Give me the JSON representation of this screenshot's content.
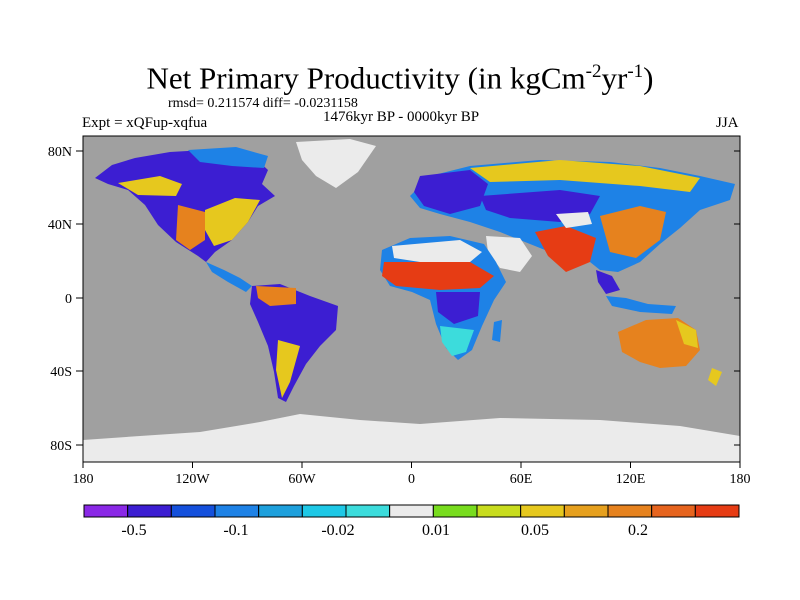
{
  "title": {
    "main": "Net Primary Productivity (in kgCm",
    "exp1": "-2",
    "mid": "yr",
    "exp2": "-1",
    "end": ")"
  },
  "stats_line": "rmsd= 0.211574 diff= -0.0231158",
  "experiment": "Expt = xQFup-xqfua",
  "period": "1476kyr BP - 0000kyr BP",
  "season": "JJA",
  "axes": {
    "lat_ticks": [
      "80N",
      "40N",
      "0",
      "40S",
      "80S"
    ],
    "lon_ticks": [
      "180",
      "120W",
      "60W",
      "0",
      "60E",
      "120E",
      "180"
    ]
  },
  "colors": {
    "ocean": "#a0a0a0",
    "ice": "#ebebeb",
    "palette": [
      "#8a28e6",
      "#3c1ed2",
      "#1450dc",
      "#1e82e6",
      "#1ea0dc",
      "#1ec8e6",
      "#3cdcdc",
      "#ebebeb",
      "#78dc1e",
      "#c8dc1e",
      "#e6c81e",
      "#e6a01e",
      "#e6821e",
      "#e6641e",
      "#e63c14"
    ]
  },
  "colorbar": {
    "labels": [
      "-0.5",
      "-0.1",
      "-0.02",
      "0.01",
      "0.05",
      "0.2"
    ]
  }
}
